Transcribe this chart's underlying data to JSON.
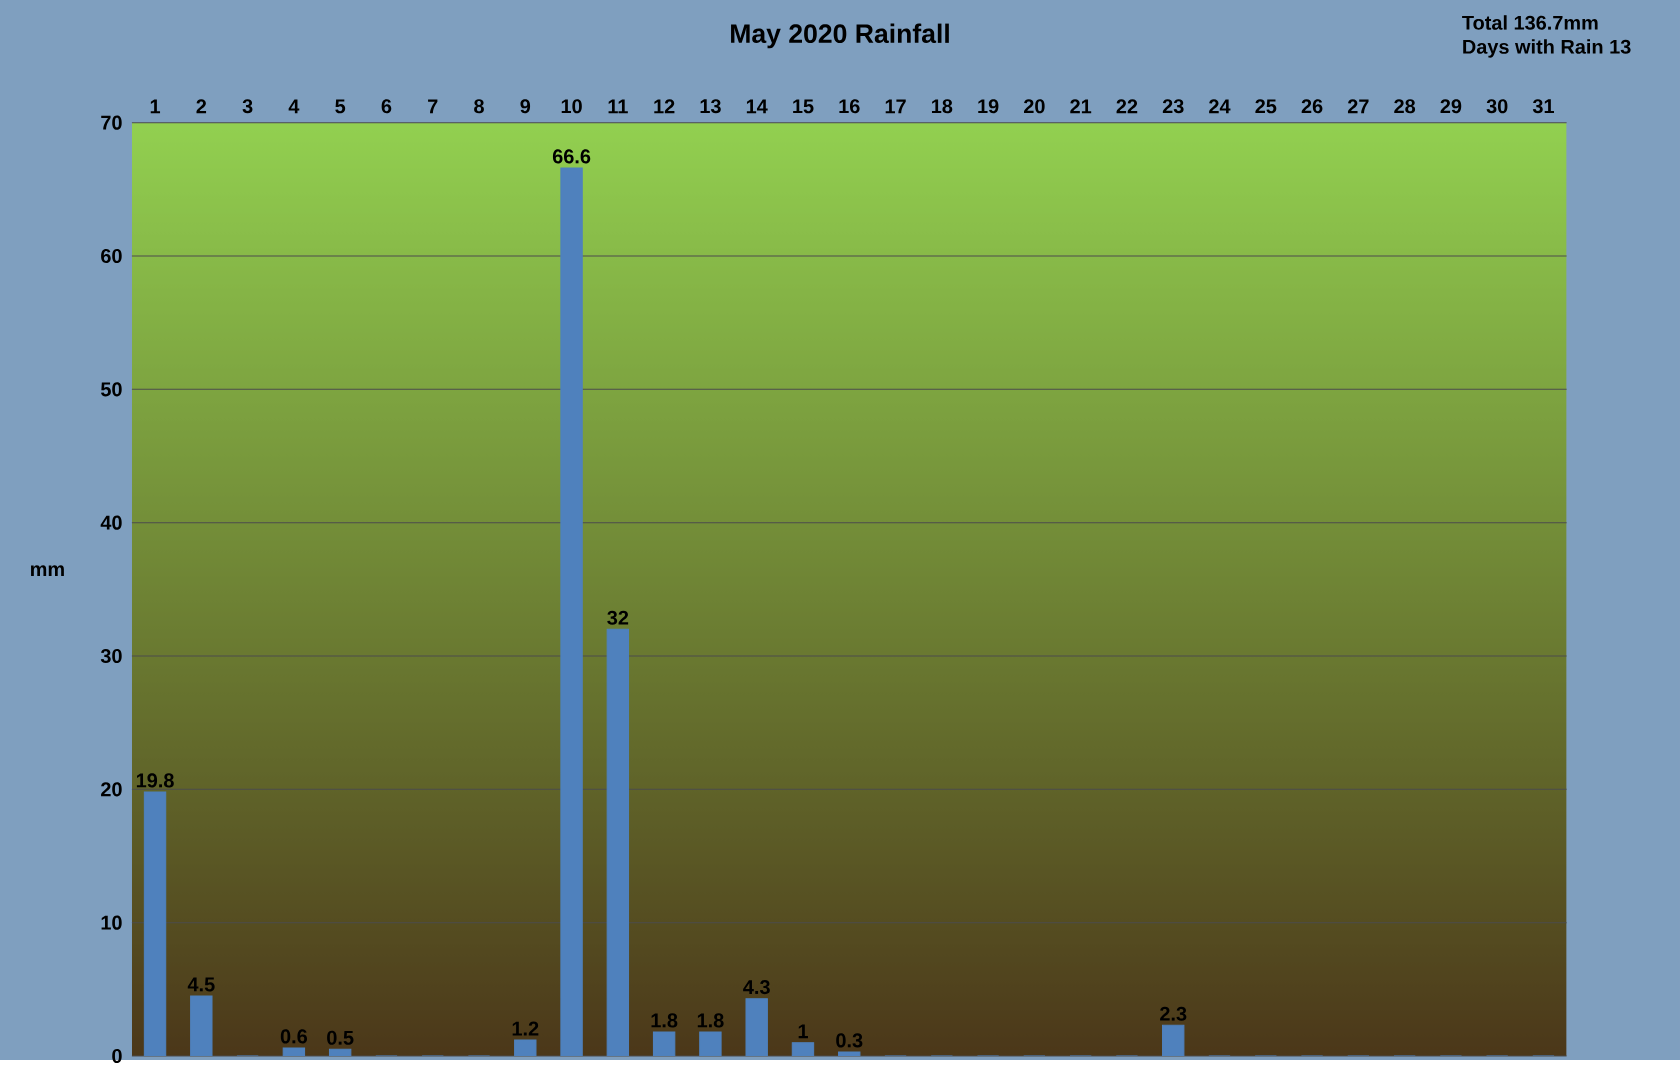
{
  "chart_data": {
    "type": "bar",
    "title": "May 2020 Rainfall",
    "ylabel": "mm",
    "categories": [
      "1",
      "2",
      "3",
      "4",
      "5",
      "6",
      "7",
      "8",
      "9",
      "10",
      "11",
      "12",
      "13",
      "14",
      "15",
      "16",
      "17",
      "18",
      "19",
      "20",
      "21",
      "22",
      "23",
      "24",
      "25",
      "26",
      "27",
      "28",
      "29",
      "30",
      "31"
    ],
    "values": [
      19.8,
      4.5,
      0,
      0.6,
      0.5,
      0,
      0,
      0,
      1.2,
      66.6,
      32,
      1.8,
      1.8,
      4.3,
      1,
      0.3,
      0,
      0,
      0,
      0,
      0,
      0,
      2.3,
      0,
      0,
      0,
      0,
      0,
      0,
      0,
      0
    ],
    "value_labels": [
      "19.8",
      "4.5",
      null,
      "0.6",
      "0.5",
      null,
      null,
      null,
      "1.2",
      "66.6",
      "32",
      "1.8",
      "1.8",
      "4.3",
      "1",
      "0.3",
      null,
      null,
      null,
      null,
      null,
      null,
      "2.3",
      null,
      null,
      null,
      null,
      null,
      null,
      null,
      null
    ],
    "color": "#4f81bd",
    "ylim": [
      0,
      70
    ],
    "yticks": [
      0,
      10,
      20,
      30,
      40,
      50,
      60,
      70
    ],
    "grid": "y",
    "annotations": [
      "Total 136.7mm",
      "Days with Rain 13"
    ]
  }
}
